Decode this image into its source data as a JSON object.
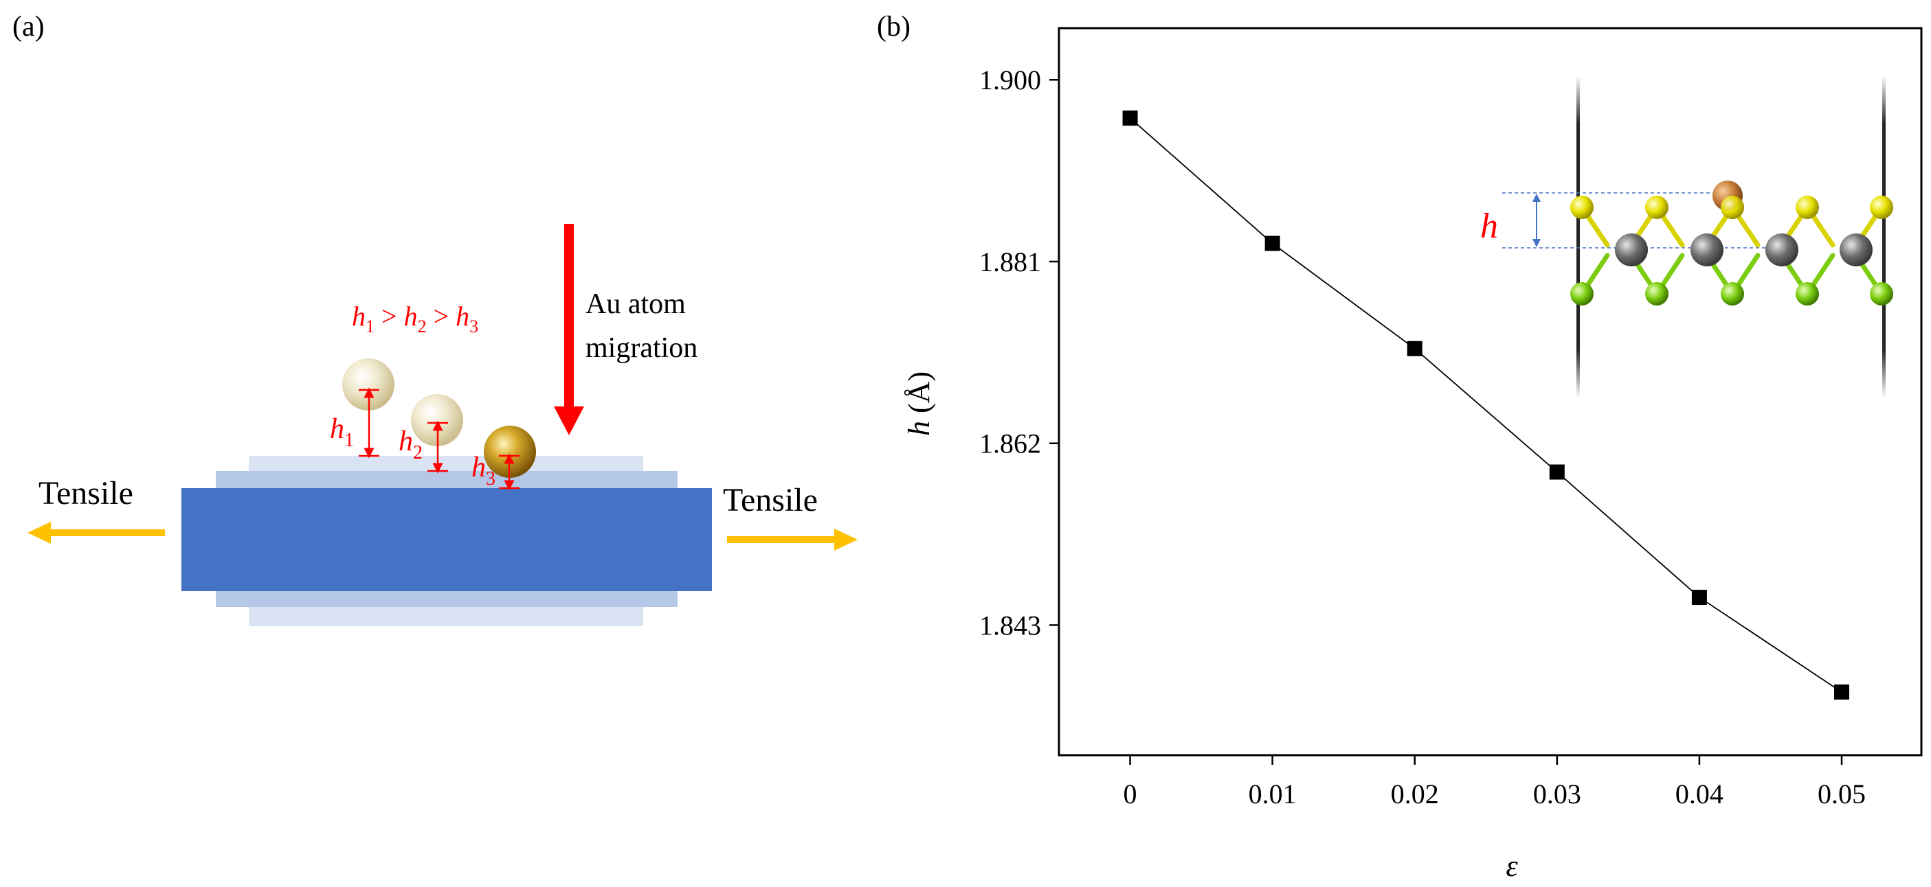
{
  "panel_a": {
    "label": "(a)",
    "relation_parts": [
      "h",
      "1",
      " > ",
      "h",
      "2",
      " > ",
      "h",
      "3"
    ],
    "arrow_label_line1": "Au atom",
    "arrow_label_line2": "migration",
    "height_labels": [
      {
        "h": "h",
        "sub": "1"
      },
      {
        "h": "h",
        "sub": "2"
      },
      {
        "h": "h",
        "sub": "3"
      }
    ],
    "tensile_left": "Tensile",
    "tensile_right": "Tensile",
    "colors": {
      "substrate": "#4472c4",
      "substrate_light": "#b4c7e7",
      "arrow_red": "#ff0000",
      "arrow_orange": "#ffc000",
      "gold": "#c9a227"
    }
  },
  "panel_b": {
    "label": "(b)",
    "inset_label": "h"
  },
  "chart_data": {
    "type": "line",
    "title": "",
    "xlabel": "ε",
    "ylabel_italic": "h",
    "ylabel_rest": " (Å)",
    "x": [
      0,
      0.01,
      0.02,
      0.03,
      0.04,
      0.05
    ],
    "x_tick_labels": [
      "0",
      "0.01",
      "0.02",
      "0.03",
      "0.04",
      "0.05"
    ],
    "y_ticks": [
      1.843,
      1.862,
      1.881,
      1.9
    ],
    "y_tick_labels": [
      "1.843",
      "1.862",
      "1.881",
      "1.900"
    ],
    "series": [
      {
        "values": [
          1.896,
          1.8829,
          1.8719,
          1.859,
          1.8459,
          1.836
        ]
      }
    ],
    "xlim": [
      -0.005,
      0.0556
    ],
    "ylim": [
      1.8294,
      1.9054
    ],
    "marker": "square",
    "grid": false,
    "colors": {
      "line": "#000000",
      "marker": "#000000"
    }
  }
}
